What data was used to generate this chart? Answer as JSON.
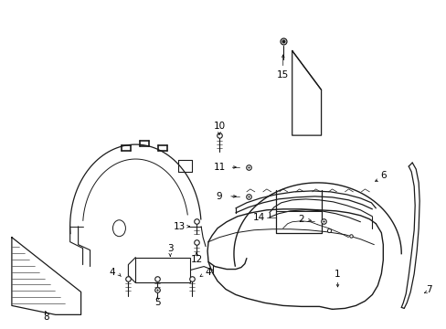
{
  "figsize": [
    4.89,
    3.6
  ],
  "dpi": 100,
  "bg": "#ffffff",
  "lc": "#1a1a1a",
  "lw": 0.7
}
